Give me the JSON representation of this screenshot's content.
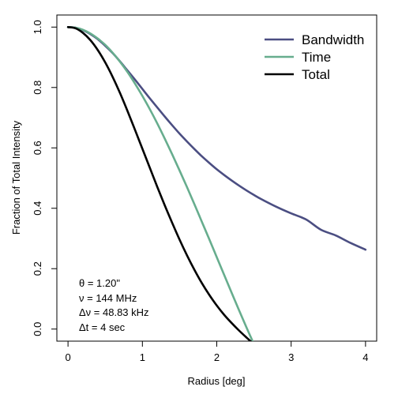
{
  "chart_data": {
    "type": "line",
    "title": "",
    "xlabel": "Radius [deg]",
    "ylabel": "Fraction of Total Intensity",
    "xlim": [
      -0.15,
      4.15
    ],
    "ylim": [
      -0.04,
      1.04
    ],
    "xticks": [
      0,
      1,
      2,
      3,
      4
    ],
    "yticks": [
      0.0,
      0.2,
      0.4,
      0.6,
      0.8,
      1.0
    ],
    "xtick_labels": [
      "0",
      "1",
      "2",
      "3",
      "4"
    ],
    "ytick_labels": [
      "0.0",
      "0.2",
      "0.4",
      "0.6",
      "0.8",
      "1.0"
    ],
    "grid": false,
    "legend_position": "top-right",
    "x": [
      0,
      0.1,
      0.2,
      0.3,
      0.4,
      0.5,
      0.6,
      0.7,
      0.8,
      0.9,
      1.0,
      1.1,
      1.2,
      1.3,
      1.4,
      1.5,
      1.6,
      1.7,
      1.8,
      1.9,
      2.0,
      2.1,
      2.2,
      2.3,
      2.4,
      2.5,
      2.6,
      2.8,
      3.0,
      3.2,
      3.4,
      3.6,
      3.8,
      4.0
    ],
    "series": [
      {
        "name": "Bandwidth",
        "color": "#4b4e82",
        "values": [
          1.0,
          0.998,
          0.99,
          0.977,
          0.96,
          0.938,
          0.914,
          0.886,
          0.856,
          0.826,
          0.795,
          0.764,
          0.734,
          0.704,
          0.675,
          0.647,
          0.621,
          0.596,
          0.572,
          0.55,
          0.529,
          0.51,
          0.492,
          0.475,
          0.459,
          0.444,
          0.43,
          0.405,
          0.383,
          0.363,
          0.329,
          0.31,
          0.285,
          0.263
        ]
      },
      {
        "name": "Time",
        "color": "#67ad8e",
        "values": [
          1.0,
          0.998,
          0.991,
          0.979,
          0.962,
          0.941,
          0.915,
          0.885,
          0.851,
          0.813,
          0.772,
          0.728,
          0.681,
          0.631,
          0.579,
          0.525,
          0.47,
          0.413,
          0.355,
          0.297,
          0.238,
          0.179,
          0.12,
          0.062,
          0.005,
          -0.05,
          null,
          null,
          null,
          null,
          null,
          null,
          null,
          null
        ]
      },
      {
        "name": "Total",
        "color": "#000000",
        "values": [
          1.0,
          0.996,
          0.981,
          0.957,
          0.924,
          0.883,
          0.835,
          0.781,
          0.722,
          0.66,
          0.597,
          0.534,
          0.471,
          0.41,
          0.352,
          0.296,
          0.244,
          0.196,
          0.152,
          0.113,
          0.078,
          0.047,
          0.02,
          -0.005,
          -0.028,
          -0.05,
          null,
          null,
          null,
          null,
          null,
          null,
          null,
          null
        ]
      }
    ],
    "annotations": [
      "θ = 1.20\"",
      "ν = 144 MHz",
      "Δν = 48.83 kHz",
      "Δt = 4 sec"
    ]
  }
}
